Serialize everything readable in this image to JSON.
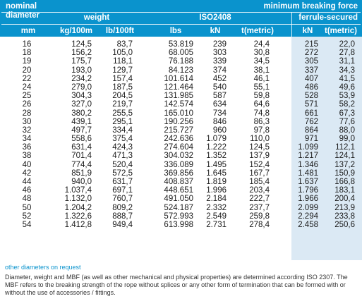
{
  "header": {
    "nominal_diameter_line1": "nominal",
    "nominal_diameter_line2": "diameter",
    "nominal_diameter_unit": "mm",
    "weight": "weight",
    "weight_unit_1": "kg/100m",
    "weight_unit_2": "lb/100ft",
    "min_breaking_force": "minimum breaking force",
    "iso": "ISO2408",
    "ferrule": "ferrule-secured",
    "unit_lbs": "lbs",
    "unit_kn": "kN",
    "unit_tmetric": "t(metric)",
    "unit_kn_2": "kN",
    "unit_tmetric_2": "t(metric)"
  },
  "rows": [
    [
      "16",
      "124,5",
      "83,7",
      "53.819",
      "239",
      "24,4",
      "215",
      "22,0"
    ],
    [
      "18",
      "156,2",
      "105,0",
      "68.005",
      "303",
      "30,8",
      "272",
      "27,8"
    ],
    [
      "19",
      "175,7",
      "118,1",
      "76.188",
      "339",
      "34,5",
      "305",
      "31,1"
    ],
    [
      "20",
      "193,0",
      "129,7",
      "84.123",
      "374",
      "38,1",
      "337",
      "34,3"
    ],
    [
      "22",
      "234,2",
      "157,4",
      "101.614",
      "452",
      "46,1",
      "407",
      "41,5"
    ],
    [
      "24",
      "279,0",
      "187,5",
      "121.464",
      "540",
      "55,1",
      "486",
      "49,6"
    ],
    [
      "25",
      "304,3",
      "204,5",
      "131.985",
      "587",
      "59,8",
      "528",
      "53,9"
    ],
    [
      "26",
      "327,0",
      "219,7",
      "142.574",
      "634",
      "64,6",
      "571",
      "58,2"
    ],
    [
      "28",
      "380,2",
      "255,5",
      "165.010",
      "734",
      "74,8",
      "661",
      "67,3"
    ],
    [
      "30",
      "439,1",
      "295,1",
      "190.256",
      "846",
      "86,3",
      "762",
      "77,6"
    ],
    [
      "32",
      "497,7",
      "334,4",
      "215.727",
      "960",
      "97,8",
      "864",
      "88,0"
    ],
    [
      "34",
      "558,6",
      "375,4",
      "242.636",
      "1.079",
      "110,0",
      "971",
      "99,0"
    ],
    [
      "36",
      "631,4",
      "424,3",
      "274.604",
      "1.222",
      "124,5",
      "1.099",
      "112,1"
    ],
    [
      "38",
      "701,4",
      "471,3",
      "304.032",
      "1.352",
      "137,9",
      "1.217",
      "124,1"
    ],
    [
      "40",
      "774,4",
      "520,4",
      "336.089",
      "1.495",
      "152,4",
      "1.346",
      "137,2"
    ],
    [
      "42",
      "851,9",
      "572,5",
      "369.856",
      "1.645",
      "167,7",
      "1.481",
      "150,9"
    ],
    [
      "44",
      "940,0",
      "631,7",
      "408.837",
      "1.819",
      "185,4",
      "1.637",
      "166,8"
    ],
    [
      "46",
      "1.037,4",
      "697,1",
      "448.651",
      "1.996",
      "203,4",
      "1.796",
      "183,1"
    ],
    [
      "48",
      "1.132,0",
      "760,7",
      "491.050",
      "2.184",
      "222,7",
      "1.966",
      "200,4"
    ],
    [
      "50",
      "1.204,2",
      "809,2",
      "524.187",
      "2.332",
      "237,7",
      "2.099",
      "213,9"
    ],
    [
      "52",
      "1.322,6",
      "888,7",
      "572.993",
      "2.549",
      "259,8",
      "2.294",
      "233,8"
    ],
    [
      "54",
      "1.412,8",
      "949,4",
      "613.998",
      "2.731",
      "278,4",
      "2.458",
      "250,6"
    ]
  ],
  "notes": {
    "other_diameters": "other diameters on request",
    "disclaimer": "Diameter, weight and MBF (as well as other mechanical and physical properties) are determined according ISO 2307. The MBF refers to the breaking strength of the rope without splices or any other form of termination that can be formed with or without the use of accessories / fittings."
  }
}
